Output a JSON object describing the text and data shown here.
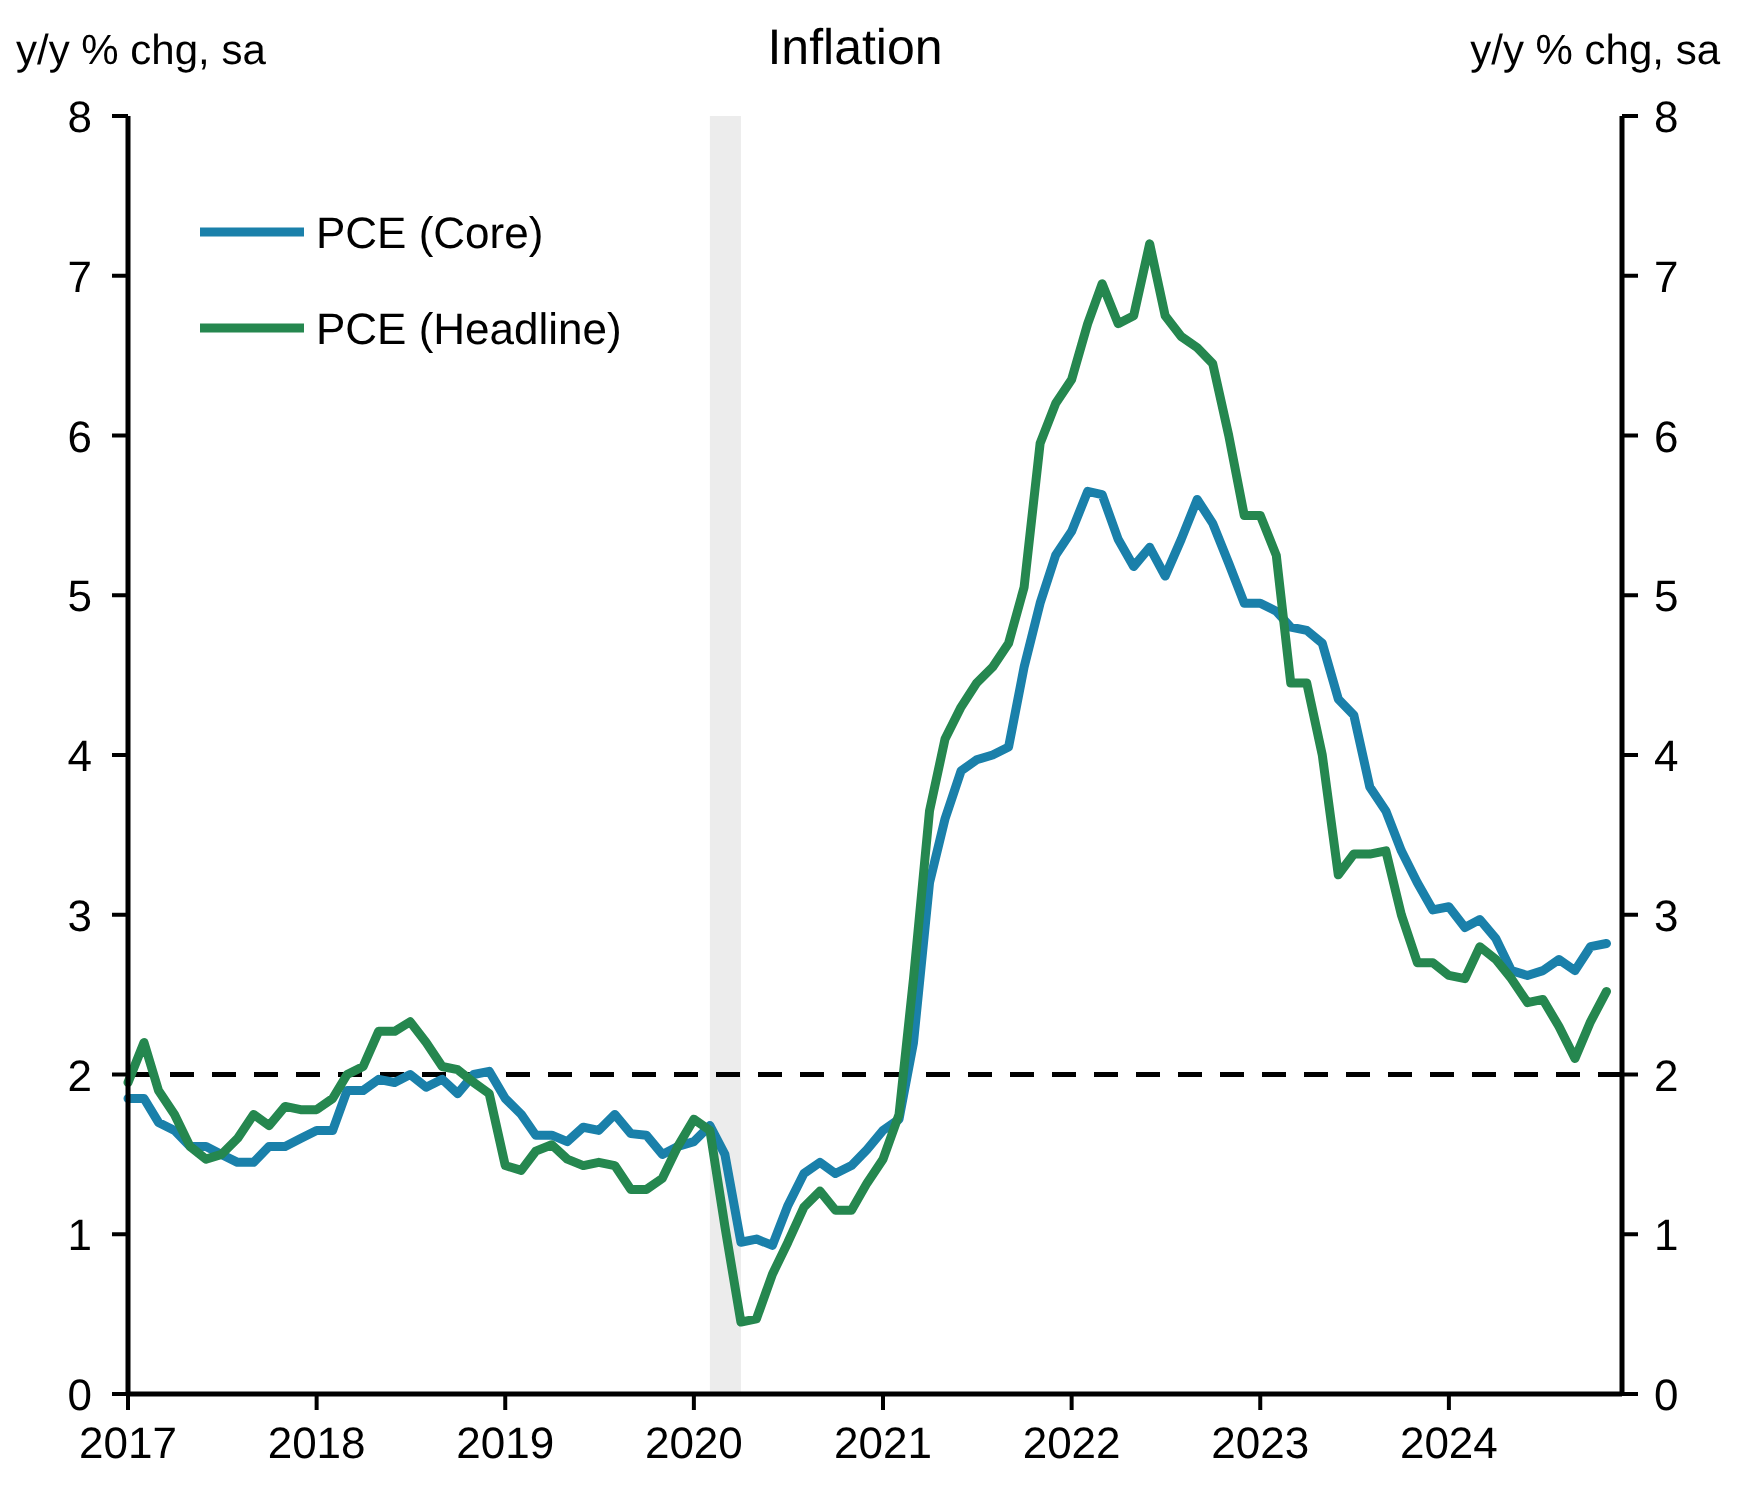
{
  "chart_data": {
    "type": "line",
    "title": "Inflation",
    "ylabel": "y/y % chg, sa",
    "y2label": "y/y % chg, sa",
    "x": [
      "2017-01",
      "2017-02",
      "2017-03",
      "2017-04",
      "2017-05",
      "2017-06",
      "2017-07",
      "2017-08",
      "2017-09",
      "2017-10",
      "2017-11",
      "2017-12",
      "2018-01",
      "2018-02",
      "2018-03",
      "2018-04",
      "2018-05",
      "2018-06",
      "2018-07",
      "2018-08",
      "2018-09",
      "2018-10",
      "2018-11",
      "2018-12",
      "2019-01",
      "2019-02",
      "2019-03",
      "2019-04",
      "2019-05",
      "2019-06",
      "2019-07",
      "2019-08",
      "2019-09",
      "2019-10",
      "2019-11",
      "2019-12",
      "2020-01",
      "2020-02",
      "2020-03",
      "2020-04",
      "2020-05",
      "2020-06",
      "2020-07",
      "2020-08",
      "2020-09",
      "2020-10",
      "2020-11",
      "2020-12",
      "2021-01",
      "2021-02",
      "2021-03",
      "2021-04",
      "2021-05",
      "2021-06",
      "2021-07",
      "2021-08",
      "2021-09",
      "2021-10",
      "2021-11",
      "2021-12",
      "2022-01",
      "2022-02",
      "2022-03",
      "2022-04",
      "2022-05",
      "2022-06",
      "2022-07",
      "2022-08",
      "2022-09",
      "2022-10",
      "2022-11",
      "2022-12",
      "2023-01",
      "2023-02",
      "2023-03",
      "2023-04",
      "2023-05",
      "2023-06",
      "2023-07",
      "2023-08",
      "2023-09",
      "2023-10",
      "2023-11",
      "2023-12",
      "2024-01",
      "2024-02",
      "2024-03",
      "2024-04",
      "2024-05",
      "2024-06",
      "2024-07",
      "2024-08",
      "2024-09",
      "2024-10",
      "2024-11"
    ],
    "series": [
      {
        "name": "PCE (Core)",
        "color": "#1a80aa",
        "values": [
          1.85,
          1.85,
          1.7,
          1.65,
          1.55,
          1.55,
          1.5,
          1.45,
          1.45,
          1.55,
          1.55,
          1.6,
          1.65,
          1.65,
          1.9,
          1.9,
          1.97,
          1.95,
          2.0,
          1.92,
          1.97,
          1.88,
          2.0,
          2.02,
          1.85,
          1.75,
          1.62,
          1.62,
          1.58,
          1.67,
          1.65,
          1.75,
          1.63,
          1.62,
          1.5,
          1.55,
          1.58,
          1.68,
          1.5,
          0.95,
          0.97,
          0.93,
          1.18,
          1.38,
          1.45,
          1.38,
          1.43,
          1.53,
          1.65,
          1.72,
          2.2,
          3.2,
          3.6,
          3.9,
          3.97,
          4.0,
          4.05,
          4.55,
          4.95,
          5.25,
          5.4,
          5.65,
          5.63,
          5.35,
          5.18,
          5.3,
          5.12,
          5.35,
          5.6,
          5.45,
          5.2,
          4.95,
          4.95,
          4.9,
          4.8,
          4.78,
          4.7,
          4.35,
          4.25,
          3.8,
          3.65,
          3.4,
          3.2,
          3.03,
          3.05,
          2.92,
          2.97,
          2.85,
          2.65,
          2.62,
          2.65,
          2.72,
          2.65,
          2.8,
          2.82
        ]
      },
      {
        "name": "PCE (Headline)",
        "color": "#25874f",
        "values": [
          1.95,
          2.2,
          1.9,
          1.75,
          1.55,
          1.47,
          1.5,
          1.6,
          1.75,
          1.68,
          1.8,
          1.78,
          1.78,
          1.85,
          2.0,
          2.05,
          2.27,
          2.27,
          2.33,
          2.2,
          2.05,
          2.03,
          1.95,
          1.88,
          1.43,
          1.4,
          1.52,
          1.56,
          1.47,
          1.43,
          1.45,
          1.43,
          1.28,
          1.28,
          1.35,
          1.55,
          1.72,
          1.65,
          1.05,
          0.45,
          0.47,
          0.75,
          0.95,
          1.17,
          1.27,
          1.15,
          1.15,
          1.32,
          1.47,
          1.75,
          2.6,
          3.65,
          4.1,
          4.3,
          4.45,
          4.55,
          4.7,
          5.05,
          5.95,
          6.2,
          6.35,
          6.7,
          6.95,
          6.7,
          6.75,
          7.2,
          6.75,
          6.62,
          6.55,
          6.45,
          6.0,
          5.5,
          5.5,
          5.25,
          4.45,
          4.45,
          4.0,
          3.25,
          3.38,
          3.38,
          3.4,
          3.0,
          2.7,
          2.7,
          2.62,
          2.6,
          2.8,
          2.72,
          2.6,
          2.45,
          2.47,
          2.3,
          2.1,
          2.33,
          2.52
        ]
      }
    ],
    "xlim": [
      "2017-01",
      "2024-12"
    ],
    "xticks": [
      "2017",
      "2018",
      "2019",
      "2020",
      "2021",
      "2022",
      "2023",
      "2024"
    ],
    "ylim": [
      0,
      8
    ],
    "yticks": [
      0,
      1,
      2,
      3,
      4,
      5,
      6,
      7,
      8
    ],
    "y2lim": [
      0,
      8
    ],
    "y2ticks": [
      0,
      1,
      2,
      3,
      4,
      5,
      6,
      7,
      8
    ],
    "ref_lines": [
      {
        "axis": "y",
        "value": 2,
        "color": "#000000",
        "line_style": "dashed"
      }
    ],
    "bands": [
      {
        "axis": "x",
        "from": "2020-02",
        "to": "2020-04",
        "color": "#ececec"
      }
    ],
    "legend": "top left",
    "grid": false,
    "marker": "none",
    "line_style": "solid"
  }
}
